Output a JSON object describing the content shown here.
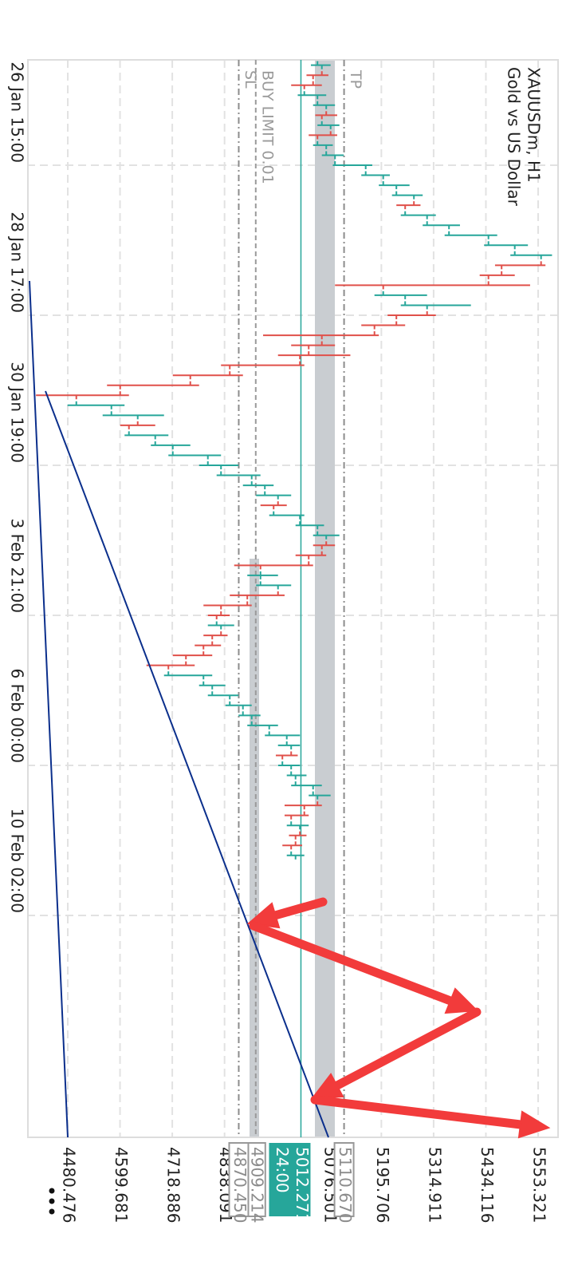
{
  "chart_data": {
    "type": "ohlc",
    "title": "XAUUSDm, H1",
    "subtitle": "Gold vs US Dollar",
    "categories": [
      null,
      null,
      null,
      null,
      null,
      null,
      null,
      null,
      null,
      null,
      "26 Jan 15:00",
      null,
      null,
      null,
      null,
      null,
      null,
      null,
      null,
      null,
      null,
      null,
      null,
      null,
      null,
      "28 Jan 17:00",
      null,
      null,
      null,
      null,
      null,
      null,
      null,
      null,
      null,
      null,
      null,
      null,
      null,
      null,
      "30 Jan 19:00",
      null,
      null,
      null,
      null,
      null,
      null,
      null,
      null,
      null,
      null,
      null,
      null,
      null,
      null,
      "3 Feb 21:00",
      null,
      null,
      null,
      null,
      null,
      null,
      null,
      null,
      null,
      null,
      null,
      null,
      null,
      null,
      "6 Feb 00:00",
      null,
      null,
      null,
      null,
      null,
      null,
      null,
      null,
      null,
      null,
      null,
      null,
      null,
      null,
      "10 Feb 02:00"
    ],
    "open": [
      5050,
      5060,
      5040,
      5020,
      5050,
      5070,
      5060,
      5080,
      5050,
      5070,
      5090,
      5160,
      5200,
      5230,
      5270,
      5250,
      5300,
      5350,
      5440,
      5500,
      5560,
      5470,
      5440,
      5200,
      5250,
      5300,
      5230,
      5180,
      5060,
      5030,
      5010,
      4850,
      4760,
      4600,
      4500,
      4580,
      4640,
      4620,
      4680,
      4720,
      4800,
      4830,
      4900,
      4930,
      4960,
      4950,
      5010,
      5050,
      5070,
      5060,
      5030,
      4920,
      4920,
      4960,
      4890,
      4830,
      4820,
      4830,
      4810,
      4790,
      4750,
      4710,
      4790,
      4810,
      4850,
      4880,
      4900,
      4940,
      4980,
      4990,
      4970,
      4990,
      5000,
      5040,
      5050,
      5020,
      4990,
      5010,
      5000,
      4990,
      null,
      null,
      null,
      null,
      null,
      null
    ],
    "high": [
      5080,
      5075,
      5060,
      5070,
      5090,
      5095,
      5100,
      5095,
      5085,
      5110,
      5175,
      5215,
      5260,
      5290,
      5285,
      5320,
      5375,
      5460,
      5530,
      5585,
      5570,
      5500,
      5535,
      5300,
      5400,
      5320,
      5250,
      5190,
      5090,
      5125,
      5020,
      4880,
      4780,
      4620,
      4610,
      4700,
      4680,
      4710,
      4760,
      4830,
      4870,
      4920,
      4950,
      4990,
      4980,
      5020,
      5065,
      5100,
      5090,
      5070,
      5040,
      4960,
      4990,
      4975,
      4900,
      4850,
      4860,
      4845,
      4830,
      4810,
      4770,
      4810,
      4840,
      4870,
      4900,
      4920,
      4960,
      5010,
      5010,
      5005,
      5010,
      5025,
      5060,
      5080,
      5060,
      5030,
      5030,
      5025,
      5015,
      5020,
      null,
      null,
      null,
      null,
      null,
      null
    ],
    "low": [
      5035,
      5025,
      4990,
      5005,
      5040,
      5045,
      5050,
      5030,
      5040,
      5060,
      5085,
      5150,
      5190,
      5220,
      5230,
      5240,
      5290,
      5340,
      5430,
      5490,
      5455,
      5420,
      5090,
      5180,
      5240,
      5210,
      5150,
      4926,
      4990,
      4960,
      4830,
      4720,
      4570,
      4408,
      4480,
      4560,
      4600,
      4610,
      4670,
      4710,
      4780,
      4820,
      4880,
      4910,
      4920,
      4940,
      5000,
      5040,
      5040,
      5000,
      4860,
      4890,
      4910,
      4850,
      4790,
      4800,
      4800,
      4790,
      4770,
      4720,
      4660,
      4700,
      4780,
      4800,
      4840,
      4870,
      4890,
      4930,
      4960,
      4955,
      4960,
      4980,
      4990,
      5030,
      4975,
      4975,
      4980,
      4985,
      4970,
      4980,
      null,
      null,
      null,
      null,
      null,
      null
    ],
    "close": [
      5060,
      5040,
      5020,
      5050,
      5070,
      5060,
      5080,
      5050,
      5070,
      5090,
      5160,
      5200,
      5230,
      5270,
      5250,
      5300,
      5350,
      5440,
      5500,
      5560,
      5470,
      5440,
      5200,
      5250,
      5300,
      5230,
      5180,
      5060,
      5030,
      5010,
      4850,
      4760,
      4600,
      4500,
      4580,
      4640,
      4620,
      4680,
      4720,
      4800,
      4830,
      4900,
      4930,
      4960,
      4950,
      5010,
      5050,
      5070,
      5060,
      5030,
      4920,
      4920,
      4960,
      4890,
      4830,
      4820,
      4830,
      4810,
      4790,
      4750,
      4710,
      4790,
      4810,
      4850,
      4880,
      4900,
      4940,
      4980,
      4990,
      4970,
      4990,
      5000,
      5040,
      5050,
      5020,
      4990,
      5010,
      5000,
      4990,
      5000,
      null,
      null,
      null,
      null,
      null,
      null
    ],
    "up_color": "#26a69a",
    "down_color": "#e0504a",
    "ylim": [
      4389.55,
      5598.75
    ],
    "yticks": [
      4480.476,
      4599.681,
      4718.886,
      4838.091,
      5076.501,
      5195.706,
      5314.911,
      5434.116,
      5553.321
    ],
    "grid": true,
    "levels": [
      {
        "name": "TP",
        "value": 5110.67,
        "label": "5110.670",
        "style": "dashdot",
        "color": "#8c8c8c"
      },
      {
        "name": "BUY LIMIT 0.01",
        "value": 4909.214,
        "style": "dashed",
        "color": "#9a9a9a"
      },
      {
        "name": "SL",
        "value": 4870.45,
        "label": "4870.450",
        "style": "dashdot",
        "color": "#8c8c8c"
      },
      {
        "value": 5012.271,
        "timer": "24:00",
        "style": "solid",
        "color": "#26a69a"
      }
    ]
  }
}
